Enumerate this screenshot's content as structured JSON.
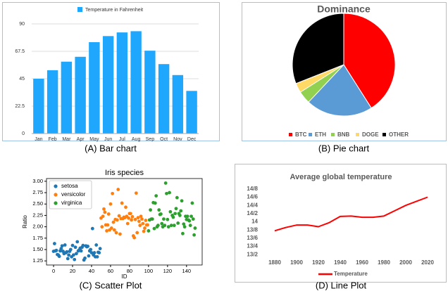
{
  "chart_data": [
    {
      "type": "bar",
      "caption": "(A) Bar chart",
      "categories": [
        "Jan",
        "Feb",
        "Mar",
        "Apr",
        "May",
        "Jun",
        "Jul",
        "Aug",
        "Sep",
        "Oct",
        "Nov",
        "Dec"
      ],
      "series": [
        {
          "name": "Temperature in Fahrenheit",
          "color": "#1ea7fd",
          "values": [
            45,
            52,
            59,
            63,
            75,
            80,
            83,
            84,
            68,
            57,
            48,
            35
          ]
        }
      ],
      "ylim": [
        0,
        90
      ],
      "yticks": [
        0,
        22.5,
        45,
        67.5,
        90
      ],
      "grid": true,
      "legend": "top"
    },
    {
      "type": "pie",
      "caption": "(B) Pie chart",
      "title": "Dominance",
      "categories": [
        "BTC",
        "ETH",
        "BNB",
        "DOGE",
        "OTHER"
      ],
      "values": [
        41,
        21,
        4,
        3,
        31
      ],
      "colors": [
        "#ff0000",
        "#5b9bd5",
        "#92d050",
        "#ffd966",
        "#000000"
      ],
      "legend": "bottom"
    },
    {
      "type": "scatter",
      "caption": "(C) Scatter Plot",
      "title": "Iris species",
      "xlabel": "ID",
      "ylabel": "Ratio",
      "series": [
        {
          "name": "setosa",
          "color": "#1f77b4",
          "x": [
            0,
            1,
            2,
            3,
            4,
            5,
            6,
            7,
            8,
            9,
            10,
            11,
            12,
            13,
            14,
            15,
            16,
            17,
            18,
            19,
            20,
            21,
            22,
            23,
            24,
            25,
            26,
            27,
            28,
            29,
            30,
            31,
            32,
            33,
            34,
            35,
            36,
            37,
            38,
            39,
            40,
            41,
            42,
            43,
            44,
            45,
            46,
            47,
            48,
            49
          ],
          "values": [
            1.46,
            1.63,
            1.47,
            1.48,
            1.39,
            1.38,
            1.35,
            1.47,
            1.52,
            1.58,
            1.46,
            1.41,
            1.6,
            1.43,
            1.45,
            1.3,
            1.38,
            1.46,
            1.5,
            1.34,
            1.59,
            1.38,
            1.28,
            1.55,
            1.41,
            1.67,
            1.47,
            1.49,
            1.53,
            1.47,
            1.55,
            1.59,
            1.27,
            1.31,
            1.58,
            1.56,
            1.57,
            1.36,
            1.47,
            1.5,
            1.43,
            1.96,
            1.38,
            1.43,
            1.34,
            1.6,
            1.34,
            1.44,
            1.43,
            1.52
          ]
        },
        {
          "name": "versicolor",
          "color": "#ff7f0e",
          "x": [
            50,
            51,
            52,
            53,
            54,
            55,
            56,
            57,
            58,
            59,
            60,
            61,
            62,
            63,
            64,
            65,
            66,
            67,
            68,
            69,
            70,
            71,
            72,
            73,
            74,
            75,
            76,
            77,
            78,
            79,
            80,
            81,
            82,
            83,
            84,
            85,
            86,
            87,
            88,
            89,
            90,
            91,
            92,
            93,
            94,
            95,
            96,
            97,
            98,
            99
          ],
          "values": [
            2.19,
            2.0,
            2.23,
            2.39,
            2.32,
            2.04,
            1.91,
            2.04,
            2.28,
            1.93,
            2.5,
            1.97,
            2.73,
            2.1,
            1.93,
            2.16,
            1.87,
            2.15,
            2.82,
            2.24,
            1.84,
            2.18,
            2.52,
            2.18,
            2.21,
            2.2,
            2.43,
            2.23,
            2.07,
            2.19,
            2.29,
            2.29,
            2.15,
            2.22,
            1.8,
            1.76,
            2.16,
            2.74,
            1.87,
            2.2,
            2.12,
            2.03,
            2.23,
            2.17,
            2.07,
            1.9,
            1.97,
            2.14,
            2.04,
            2.04
          ]
        },
        {
          "name": "virginica",
          "color": "#2ca02c",
          "x": [
            100,
            101,
            102,
            103,
            104,
            105,
            106,
            107,
            108,
            109,
            110,
            111,
            112,
            113,
            114,
            115,
            116,
            117,
            118,
            119,
            120,
            121,
            122,
            123,
            124,
            125,
            126,
            127,
            128,
            129,
            130,
            131,
            132,
            133,
            134,
            135,
            136,
            137,
            138,
            139,
            140,
            141,
            142,
            143,
            144,
            145,
            146,
            147,
            148,
            149
          ],
          "values": [
            1.91,
            2.15,
            2.37,
            2.17,
            2.17,
            2.53,
            1.96,
            2.52,
            2.68,
            2.0,
            2.03,
            2.37,
            2.27,
            2.28,
            2.07,
            2.0,
            2.17,
            2.03,
            2.96,
            2.73,
            2.16,
            2.0,
            2.75,
            2.33,
            2.03,
            2.25,
            2.21,
            2.03,
            2.29,
            2.4,
            2.64,
            2.08,
            2.29,
            2.25,
            2.35,
            2.57,
            1.85,
            2.06,
            2.0,
            2.23,
            2.16,
            2.23,
            2.15,
            2.13,
            2.03,
            2.23,
            2.52,
            2.17,
            1.82,
            1.97
          ]
        }
      ],
      "xlim": [
        -7.45,
        156.45
      ],
      "xticks": [
        0,
        20,
        40,
        60,
        80,
        100,
        120,
        140
      ],
      "ylim": [
        1.16,
        3.06
      ],
      "yticks": [
        1.25,
        {
          "value": 1.5,
          "label": "1.50"
        },
        1.75,
        {
          "value": 2,
          "label": "2.00"
        },
        2.25,
        {
          "value": 2.5,
          "label": "2.50"
        },
        2.75,
        {
          "value": 3,
          "label": "3.00"
        }
      ],
      "legend": "upper left"
    },
    {
      "type": "line",
      "caption": "(D) Line Plot",
      "title": "Average global temperature",
      "x": [
        1880,
        1890,
        1900,
        1910,
        1920,
        1930,
        1940,
        1950,
        1960,
        1970,
        1980,
        1990,
        2000,
        2010,
        2020
      ],
      "series": [
        {
          "name": "Temperature",
          "color": "#ff0000",
          "values": [
            13.78,
            13.86,
            13.92,
            13.92,
            13.88,
            13.98,
            14.13,
            14.14,
            14.11,
            14.11,
            14.14,
            14.27,
            14.4,
            14.5,
            14.6
          ]
        }
      ],
      "xlim": [
        1870,
        2030
      ],
      "xticks": [
        1880,
        1900,
        1920,
        1940,
        1960,
        1980,
        2000,
        2020
      ],
      "ylim": [
        13.1,
        14.9
      ],
      "yticks": [
        {
          "value": 13.2,
          "label": "13/2"
        },
        {
          "value": 13.4,
          "label": "13/4"
        },
        {
          "value": 13.6,
          "label": "13/6"
        },
        {
          "value": 13.8,
          "label": "13/8"
        },
        14,
        {
          "value": 14.2,
          "label": "14/2"
        },
        {
          "value": 14.4,
          "label": "14/4"
        },
        {
          "value": 14.6,
          "label": "14/6"
        },
        {
          "value": 14.8,
          "label": "14/8"
        }
      ],
      "legend": "bottom"
    }
  ]
}
